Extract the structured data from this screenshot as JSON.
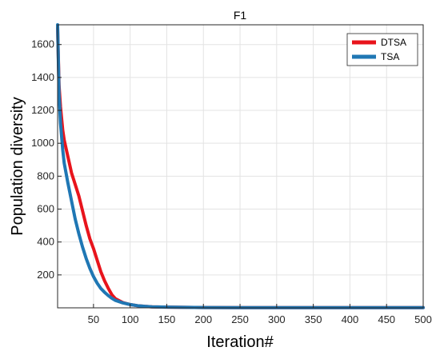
{
  "chart_data": {
    "type": "line",
    "title": "F1",
    "xlabel": "Iteration#",
    "ylabel": "Population diversity",
    "xlim": [
      1,
      500
    ],
    "ylim": [
      0,
      1720
    ],
    "xticks": [
      50,
      100,
      150,
      200,
      250,
      300,
      350,
      400,
      450,
      500
    ],
    "yticks": [
      200,
      400,
      600,
      800,
      1000,
      1200,
      1400,
      1600
    ],
    "grid": true,
    "legend_position": "top-right",
    "series": [
      {
        "name": "DTSA",
        "color": "#e8141c",
        "x": [
          1,
          3,
          5,
          8,
          10,
          15,
          20,
          25,
          30,
          35,
          40,
          45,
          50,
          55,
          60,
          65,
          70,
          75,
          80,
          90,
          100,
          110,
          120,
          130,
          150,
          175,
          200,
          250,
          300,
          400,
          500
        ],
        "y": [
          1700,
          1350,
          1220,
          1080,
          1020,
          920,
          820,
          750,
          680,
          590,
          500,
          420,
          360,
          290,
          220,
          165,
          120,
          80,
          55,
          32,
          20,
          13,
          9,
          6,
          4,
          3,
          2,
          1,
          1,
          1,
          1
        ]
      },
      {
        "name": "TSA",
        "color": "#1f77b4",
        "x": [
          1,
          3,
          5,
          8,
          10,
          15,
          20,
          25,
          30,
          35,
          40,
          45,
          50,
          55,
          60,
          65,
          70,
          75,
          80,
          90,
          100,
          110,
          120,
          130,
          150,
          175,
          200,
          250,
          300,
          400,
          500
        ],
        "y": [
          1720,
          1300,
          1120,
          960,
          880,
          760,
          650,
          540,
          450,
          370,
          300,
          240,
          190,
          150,
          118,
          95,
          75,
          58,
          45,
          30,
          20,
          13,
          9,
          6,
          4,
          3,
          2,
          1,
          1,
          1,
          1
        ]
      }
    ]
  }
}
